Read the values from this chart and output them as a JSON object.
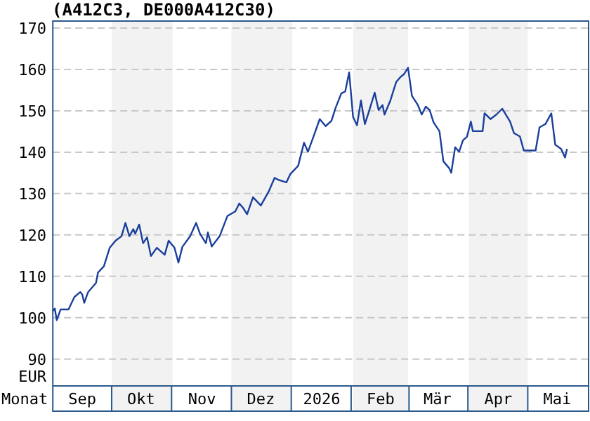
{
  "chart_data": {
    "type": "line",
    "title": "(A412C3, DE000A412C30)",
    "xlabel": "Monat",
    "ylabel": "EUR",
    "x": [
      "2025-09-01",
      "2025-09-02",
      "2025-09-03",
      "2025-09-05",
      "2025-09-09",
      "2025-09-12",
      "2025-09-15",
      "2025-09-16",
      "2025-09-17",
      "2025-09-19",
      "2025-09-23",
      "2025-09-24",
      "2025-09-27",
      "2025-09-30",
      "2025-10-03",
      "2025-10-06",
      "2025-10-08",
      "2025-10-10",
      "2025-10-12",
      "2025-10-13",
      "2025-10-15",
      "2025-10-17",
      "2025-10-19",
      "2025-10-21",
      "2025-10-24",
      "2025-10-28",
      "2025-10-30",
      "2025-11-02",
      "2025-11-04",
      "2025-11-06",
      "2025-11-10",
      "2025-11-13",
      "2025-11-15",
      "2025-11-18",
      "2025-11-19",
      "2025-11-21",
      "2025-11-25",
      "2025-11-29",
      "2025-12-03",
      "2025-12-05",
      "2025-12-07",
      "2025-12-09",
      "2025-12-12",
      "2025-12-16",
      "2025-12-20",
      "2025-12-23",
      "2025-12-25",
      "2025-12-29",
      "2025-12-31",
      "2026-01-04",
      "2026-01-07",
      "2026-01-09",
      "2026-01-12",
      "2026-01-15",
      "2026-01-18",
      "2026-01-21",
      "2026-01-23",
      "2026-01-26",
      "2026-01-28",
      "2026-01-30",
      "2026-02-01",
      "2026-02-03",
      "2026-02-05",
      "2026-02-07",
      "2026-02-09",
      "2026-02-12",
      "2026-02-14",
      "2026-02-16",
      "2026-02-17",
      "2026-02-20",
      "2026-02-23",
      "2026-02-25",
      "2026-02-27",
      "2026-03-01",
      "2026-03-03",
      "2026-03-06",
      "2026-03-08",
      "2026-03-10",
      "2026-03-12",
      "2026-03-14",
      "2026-03-17",
      "2026-03-19",
      "2026-03-22",
      "2026-03-23",
      "2026-03-25",
      "2026-03-27",
      "2026-03-29",
      "2026-03-31",
      "2026-04-02",
      "2026-04-03",
      "2026-04-08",
      "2026-04-09",
      "2026-04-12",
      "2026-04-15",
      "2026-04-18",
      "2026-04-22",
      "2026-04-24",
      "2026-04-27",
      "2026-04-29",
      "2026-05-05",
      "2026-05-07",
      "2026-05-10",
      "2026-05-13",
      "2026-05-15",
      "2026-05-18",
      "2026-05-20",
      "2026-05-21"
    ],
    "series": [
      {
        "color": "#1a3f9c",
        "values": [
          101.6,
          102.2,
          99.4,
          102,
          102,
          105,
          106.2,
          105.6,
          103.6,
          106.2,
          108.4,
          110.9,
          112.4,
          116.9,
          118.6,
          119.7,
          122.9,
          119.7,
          121.4,
          120.3,
          122.5,
          118,
          119.4,
          114.9,
          116.9,
          115.2,
          118.6,
          116.9,
          113.3,
          117.1,
          119.7,
          122.9,
          120.3,
          118,
          120.6,
          117.2,
          119.7,
          124.6,
          125.7,
          127.6,
          126.5,
          125,
          129.1,
          127.1,
          130.5,
          133.8,
          133.3,
          132.7,
          134.7,
          136.7,
          142.3,
          140.1,
          144,
          148,
          146.3,
          147.6,
          150.6,
          154.2,
          154.7,
          159.3,
          148.5,
          146.5,
          152.5,
          146.8,
          149.7,
          154.4,
          150.2,
          151.4,
          149.1,
          152.5,
          157,
          158.1,
          158.9,
          160.4,
          153.6,
          151.4,
          149.1,
          151,
          150.2,
          147.2,
          145.1,
          137.8,
          136.1,
          135,
          141.2,
          140.1,
          142.9,
          143.7,
          147.4,
          145.1,
          145.1,
          149.4,
          148,
          149.1,
          150.5,
          147.4,
          144.6,
          143.8,
          140.4,
          140.4,
          146,
          146.8,
          149.4,
          141.8,
          140.8,
          138.7,
          140.8
        ]
      }
    ],
    "xlim": [
      "2025-09-01",
      "2026-06-01"
    ],
    "xticks": [
      {
        "value": "2025-09-16",
        "label": "Sep"
      },
      {
        "value": "2025-10-16",
        "label": "Okt"
      },
      {
        "value": "2025-11-16",
        "label": "Nov"
      },
      {
        "value": "2025-12-16",
        "label": "Dez"
      },
      {
        "value": "2026-01-16",
        "label": "2026"
      },
      {
        "value": "2026-02-15",
        "label": "Feb"
      },
      {
        "value": "2026-03-16",
        "label": "Mär"
      },
      {
        "value": "2026-04-16",
        "label": "Apr"
      },
      {
        "value": "2026-05-16",
        "label": "Mai"
      }
    ],
    "ylim": [
      83.5,
      171.7
    ],
    "yticks": [
      90,
      100,
      110,
      120,
      130,
      140,
      150,
      160,
      170
    ],
    "grid": "y",
    "line_style": "solid",
    "marker": "none",
    "bands": [
      {
        "axis": "x",
        "from": "2025-10-01",
        "to": "2025-11-01",
        "color": "#f2f2f2"
      },
      {
        "axis": "x",
        "from": "2025-12-01",
        "to": "2026-01-01",
        "color": "#f2f2f2"
      },
      {
        "axis": "x",
        "from": "2026-02-01",
        "to": "2026-03-01",
        "color": "#f2f2f2"
      },
      {
        "axis": "x",
        "from": "2026-04-01",
        "to": "2026-05-01",
        "color": "#f2f2f2"
      }
    ]
  }
}
